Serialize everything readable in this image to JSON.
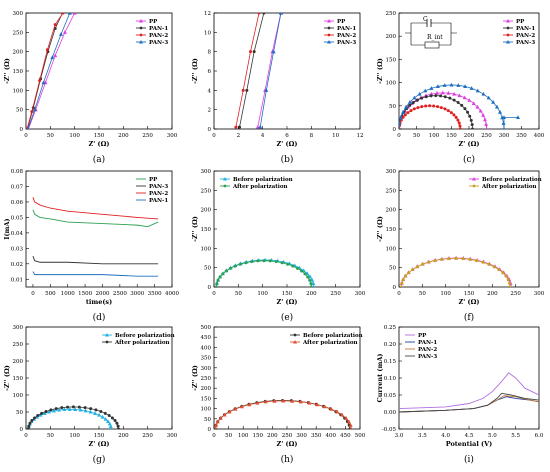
{
  "chart_data": [
    {
      "panel": "(a)",
      "type": "scatter",
      "xlabel": "Z' (Ω)",
      "ylabel": "-Z'' (Ω)",
      "xlim": [
        0,
        300
      ],
      "ylim": [
        0,
        300
      ],
      "xticks": [
        0,
        50,
        100,
        150,
        200,
        250,
        300
      ],
      "yticks": [
        0,
        50,
        100,
        150,
        200,
        250,
        300
      ],
      "legend": "top-right",
      "series": [
        {
          "name": "PP",
          "color": "#e040e0",
          "marker": "triangle",
          "x": [
            5,
            20,
            40,
            60,
            80,
            100
          ],
          "y": [
            0,
            50,
            120,
            190,
            250,
            300
          ]
        },
        {
          "name": "PAN-1",
          "color": "#333333",
          "marker": "circle",
          "x": [
            3,
            15,
            30,
            45,
            60,
            75
          ],
          "y": [
            0,
            55,
            130,
            200,
            260,
            300
          ]
        },
        {
          "name": "PAN-2",
          "color": "#e02020",
          "marker": "circle",
          "x": [
            2,
            12,
            28,
            44,
            60,
            76
          ],
          "y": [
            0,
            45,
            125,
            205,
            270,
            300
          ]
        },
        {
          "name": "PAN-3",
          "color": "#1f6fc0",
          "marker": "triangle",
          "x": [
            4,
            18,
            36,
            54,
            72,
            90
          ],
          "y": [
            0,
            50,
            120,
            185,
            245,
            300
          ]
        }
      ]
    },
    {
      "panel": "(b)",
      "type": "scatter",
      "xlabel": "Z' (Ω)",
      "ylabel": "-Z'' (Ω)",
      "xlim": [
        0,
        12
      ],
      "ylim": [
        0,
        12
      ],
      "xticks": [
        0,
        2,
        4,
        6,
        8,
        10,
        12
      ],
      "yticks": [
        0,
        2,
        4,
        6,
        8,
        10,
        12
      ],
      "legend": "top-right",
      "series": [
        {
          "name": "PP",
          "color": "#e040e0",
          "marker": "triangle",
          "x": [
            3.6,
            4.2,
            4.8,
            5.5
          ],
          "y": [
            0.2,
            4,
            8,
            12
          ]
        },
        {
          "name": "PAN-1",
          "color": "#333333",
          "marker": "circle",
          "x": [
            2.1,
            2.7,
            3.3,
            4.1
          ],
          "y": [
            0.2,
            4,
            8,
            12
          ]
        },
        {
          "name": "PAN-2",
          "color": "#e02020",
          "marker": "circle",
          "x": [
            1.8,
            2.4,
            3.0,
            3.7
          ],
          "y": [
            0.2,
            4,
            8,
            12
          ]
        },
        {
          "name": "PAN-3",
          "color": "#1f6fc0",
          "marker": "triangle",
          "x": [
            3.8,
            4.3,
            4.9,
            5.5
          ],
          "y": [
            0.2,
            4,
            8,
            12
          ]
        }
      ]
    },
    {
      "panel": "(c)",
      "type": "scatter",
      "xlabel": "Z' (Ω)",
      "ylabel": "-Z'' (Ω)",
      "xlim": [
        0,
        400
      ],
      "ylim": [
        0,
        250
      ],
      "xticks": [
        0,
        50,
        100,
        150,
        200,
        250,
        300,
        350,
        400
      ],
      "yticks": [
        0,
        50,
        100,
        150,
        200,
        250
      ],
      "legend": "top-right",
      "inset_labels": [
        "C",
        "R_int"
      ],
      "series": [
        {
          "name": "PP",
          "color": "#e040e0",
          "marker": "triangle",
          "arc": [
            0,
            250,
            78
          ]
        },
        {
          "name": "PAN-1",
          "color": "#333333",
          "marker": "circle",
          "arc": [
            0,
            210,
            72
          ]
        },
        {
          "name": "PAN-2",
          "color": "#e02020",
          "marker": "circle",
          "arc": [
            0,
            175,
            50
          ]
        },
        {
          "name": "PAN-3",
          "color": "#1f6fc0",
          "marker": "triangle",
          "arc": [
            0,
            300,
            95
          ],
          "tail": [
            [
              300,
              25
            ],
            [
              340,
              25
            ]
          ]
        }
      ]
    },
    {
      "panel": "(d)",
      "type": "line",
      "xlabel": "time(s)",
      "ylabel": "I(mA)",
      "xlim": [
        -200,
        4000
      ],
      "ylim": [
        0.005,
        0.08
      ],
      "xticks": [
        0,
        500,
        1000,
        1500,
        2000,
        2500,
        3000,
        3500,
        4000
      ],
      "yticks": [
        0.01,
        0.02,
        0.03,
        0.04,
        0.05,
        0.06,
        0.07,
        0.08
      ],
      "ytick_labels": [
        "0.01",
        "0.02",
        "0.03",
        "0.04",
        "0.05",
        "0.06",
        "0.07",
        "0.08"
      ],
      "legend": "top-right",
      "series": [
        {
          "name": "PP",
          "color": "#2aa050",
          "x": [
            0,
            50,
            200,
            500,
            1000,
            2000,
            3000,
            3300,
            3600
          ],
          "y": [
            0.055,
            0.052,
            0.05,
            0.049,
            0.047,
            0.046,
            0.045,
            0.044,
            0.047
          ]
        },
        {
          "name": "PAN-3",
          "color": "#333333",
          "x": [
            0,
            50,
            200,
            1000,
            2000,
            3000,
            3600
          ],
          "y": [
            0.025,
            0.022,
            0.021,
            0.021,
            0.02,
            0.02,
            0.02
          ]
        },
        {
          "name": "PAN-2",
          "color": "#e02020",
          "x": [
            0,
            50,
            200,
            500,
            1000,
            2000,
            3000,
            3600
          ],
          "y": [
            0.063,
            0.06,
            0.058,
            0.056,
            0.054,
            0.052,
            0.05,
            0.049
          ]
        },
        {
          "name": "PAN-1",
          "color": "#1f6fc0",
          "x": [
            0,
            50,
            200,
            1000,
            2000,
            3000,
            3600
          ],
          "y": [
            0.015,
            0.013,
            0.013,
            0.013,
            0.013,
            0.012,
            0.012
          ]
        }
      ]
    },
    {
      "panel": "(e)",
      "type": "scatter",
      "xlabel": "Z' (Ω)",
      "ylabel": "-Z'' (Ω)",
      "xlim": [
        0,
        300
      ],
      "ylim": [
        0,
        300
      ],
      "xticks": [
        0,
        50,
        100,
        150,
        200,
        250,
        300
      ],
      "yticks": [
        0,
        50,
        100,
        150,
        200,
        250,
        300
      ],
      "legend": "top-left",
      "series": [
        {
          "name": "Before polarization",
          "color": "#20b0e0",
          "marker": "triangle",
          "arc": [
            5,
            205,
            70
          ]
        },
        {
          "name": "After polarization",
          "color": "#2aa050",
          "marker": "circle",
          "arc": [
            5,
            200,
            68
          ]
        }
      ]
    },
    {
      "panel": "(f)",
      "type": "scatter",
      "xlabel": "Z' (Ω)",
      "ylabel": "-Z'' (Ω)",
      "xlim": [
        0,
        300
      ],
      "ylim": [
        0,
        300
      ],
      "xticks": [
        0,
        50,
        100,
        150,
        200,
        250,
        300
      ],
      "yticks": [
        0,
        50,
        100,
        150,
        200,
        250,
        300
      ],
      "legend": "top-right",
      "series": [
        {
          "name": "Before polarization",
          "color": "#e040e0",
          "marker": "triangle",
          "arc": [
            5,
            240,
            75
          ]
        },
        {
          "name": "After polarization",
          "color": "#c8a020",
          "marker": "circle",
          "arc": [
            5,
            238,
            74
          ]
        }
      ]
    },
    {
      "panel": "(g)",
      "type": "scatter",
      "xlabel": "Z' (Ω)",
      "ylabel": "-Z'' (Ω)",
      "xlim": [
        0,
        300
      ],
      "ylim": [
        0,
        300
      ],
      "xticks": [
        0,
        50,
        100,
        150,
        200,
        250,
        300
      ],
      "yticks": [
        0,
        50,
        100,
        150,
        200,
        250,
        300
      ],
      "legend": "top-right",
      "series": [
        {
          "name": "Before polarization",
          "color": "#20b0e0",
          "marker": "triangle",
          "arc": [
            5,
            175,
            58
          ]
        },
        {
          "name": "After polarization",
          "color": "#333333",
          "marker": "circle",
          "arc": [
            5,
            190,
            65
          ]
        }
      ]
    },
    {
      "panel": "(h)",
      "type": "scatter",
      "xlabel": "Z' (Ω)",
      "ylabel": "-Z'' (Ω)",
      "xlim": [
        0,
        500
      ],
      "ylim": [
        0,
        500
      ],
      "xticks": [
        0,
        50,
        100,
        150,
        200,
        250,
        300,
        350,
        400,
        450,
        500
      ],
      "yticks": [
        0,
        50,
        100,
        150,
        200,
        250,
        300,
        350,
        400,
        450,
        500
      ],
      "legend": "top-right",
      "series": [
        {
          "name": "Before polarization",
          "color": "#333333",
          "marker": "circle",
          "arc": [
            5,
            465,
            140
          ]
        },
        {
          "name": "After polarization",
          "color": "#e05030",
          "marker": "triangle",
          "arc": [
            5,
            470,
            138
          ]
        }
      ]
    },
    {
      "panel": "(i)",
      "type": "line",
      "xlabel": "Potential (V)",
      "ylabel": "Current (mA)",
      "xlim": [
        3.0,
        6.0
      ],
      "ylim": [
        -0.05,
        0.25
      ],
      "xticks": [
        3.0,
        3.5,
        4.0,
        4.5,
        5.0,
        5.5,
        6.0
      ],
      "xtick_labels": [
        "3.0",
        "3.5",
        "4.0",
        "4.5",
        "5.0",
        "5.5",
        "6.0"
      ],
      "yticks": [
        -0.05,
        0.0,
        0.05,
        0.1,
        0.15,
        0.2,
        0.25
      ],
      "ytick_labels": [
        "-0.05",
        "0.00",
        "0.05",
        "0.10",
        "0.15",
        "0.20",
        "0.25"
      ],
      "legend": "top-left",
      "series": [
        {
          "name": "PP",
          "color": "#b070e0",
          "x": [
            3.0,
            4.0,
            4.5,
            4.8,
            5.0,
            5.2,
            5.35,
            5.5,
            5.7,
            6.0
          ],
          "y": [
            0.01,
            0.015,
            0.025,
            0.04,
            0.06,
            0.09,
            0.115,
            0.1,
            0.07,
            0.05
          ]
        },
        {
          "name": "PAN-1",
          "color": "#1f3f9f",
          "x": [
            3.0,
            4.0,
            4.6,
            4.9,
            5.1,
            5.3,
            5.5,
            5.8,
            6.0
          ],
          "y": [
            0.0,
            0.005,
            0.01,
            0.02,
            0.035,
            0.045,
            0.04,
            0.035,
            0.03
          ]
        },
        {
          "name": "PAN-2",
          "color": "#c07a3a",
          "x": [
            3.0,
            4.0,
            4.6,
            4.9,
            5.1,
            5.25,
            5.5,
            5.8,
            6.0
          ],
          "y": [
            0.0,
            0.005,
            0.01,
            0.02,
            0.035,
            0.048,
            0.045,
            0.035,
            0.03
          ]
        },
        {
          "name": "PAN-3",
          "color": "#444444",
          "x": [
            3.0,
            4.0,
            4.6,
            4.9,
            5.1,
            5.2,
            5.4,
            5.7,
            6.0
          ],
          "y": [
            0.0,
            0.005,
            0.01,
            0.02,
            0.04,
            0.055,
            0.05,
            0.04,
            0.035
          ]
        }
      ]
    }
  ]
}
